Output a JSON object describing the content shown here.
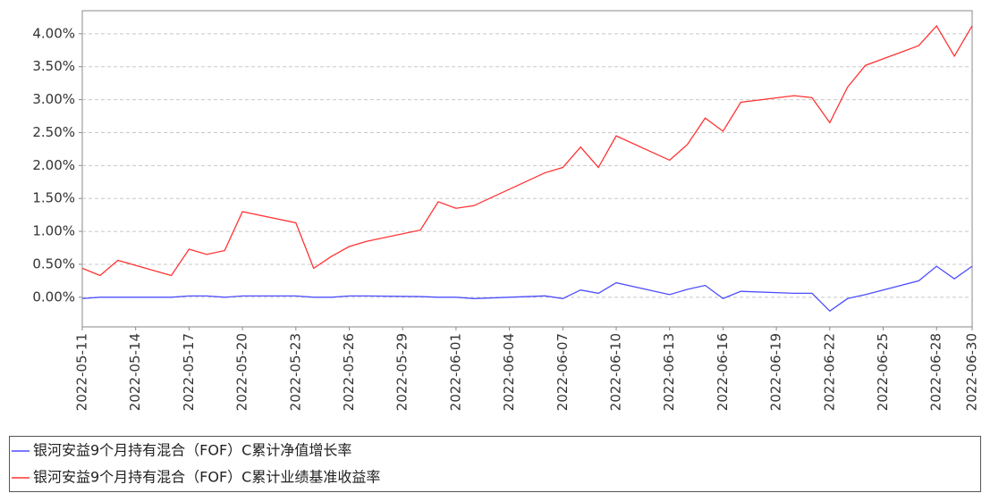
{
  "chart_data": {
    "type": "line",
    "x": [
      "2022-05-11",
      "2022-05-12",
      "2022-05-13",
      "2022-05-16",
      "2022-05-17",
      "2022-05-18",
      "2022-05-19",
      "2022-05-20",
      "2022-05-23",
      "2022-05-24",
      "2022-05-25",
      "2022-05-26",
      "2022-05-27",
      "2022-05-30",
      "2022-05-31",
      "2022-06-01",
      "2022-06-02",
      "2022-06-06",
      "2022-06-07",
      "2022-06-08",
      "2022-06-09",
      "2022-06-10",
      "2022-06-13",
      "2022-06-14",
      "2022-06-15",
      "2022-06-16",
      "2022-06-17",
      "2022-06-20",
      "2022-06-21",
      "2022-06-22",
      "2022-06-23",
      "2022-06-24",
      "2022-06-27",
      "2022-06-28",
      "2022-06-29",
      "2022-06-30"
    ],
    "series": [
      {
        "name": "银河安益9个月持有混合（FOF）C累计净值增长率",
        "color": "#4d4dff",
        "values": [
          -0.02,
          0.0,
          0.0,
          0.0,
          0.02,
          0.02,
          0.0,
          0.02,
          0.02,
          0.0,
          0.0,
          0.02,
          0.02,
          0.01,
          0.0,
          0.0,
          -0.02,
          0.02,
          -0.02,
          0.11,
          0.06,
          0.22,
          0.04,
          0.12,
          0.18,
          -0.02,
          0.09,
          0.06,
          0.06,
          -0.21,
          -0.02,
          0.04,
          0.25,
          0.47,
          0.28,
          0.47
        ]
      },
      {
        "name": "银河安益9个月持有混合（FOF）C累计业绩基准收益率",
        "color": "#ff3333",
        "values": [
          0.44,
          0.33,
          0.56,
          0.33,
          0.73,
          0.65,
          0.71,
          1.3,
          1.13,
          0.44,
          0.62,
          0.77,
          0.85,
          1.02,
          1.45,
          1.35,
          1.39,
          1.89,
          1.97,
          2.28,
          1.97,
          2.45,
          2.08,
          2.32,
          2.72,
          2.52,
          2.96,
          3.06,
          3.03,
          2.65,
          3.19,
          3.52,
          3.82,
          4.12,
          3.66,
          4.12
        ]
      }
    ],
    "xlim": [
      "2022-05-11",
      "2022-06-30"
    ],
    "xticks": [
      "2022-05-11",
      "2022-05-14",
      "2022-05-17",
      "2022-05-20",
      "2022-05-23",
      "2022-05-26",
      "2022-05-29",
      "2022-06-01",
      "2022-06-04",
      "2022-06-07",
      "2022-06-10",
      "2022-06-13",
      "2022-06-16",
      "2022-06-19",
      "2022-06-22",
      "2022-06-25",
      "2022-06-28",
      "2022-06-30"
    ],
    "ylim": [
      -0.45,
      4.35
    ],
    "yticks": [
      {
        "value": 0,
        "label": "0.00%"
      },
      {
        "value": 0.5,
        "label": "0.50%"
      },
      {
        "value": 1,
        "label": "1.00%"
      },
      {
        "value": 1.5,
        "label": "1.50%"
      },
      {
        "value": 2,
        "label": "2.00%"
      },
      {
        "value": 2.5,
        "label": "2.50%"
      },
      {
        "value": 3,
        "label": "3.00%"
      },
      {
        "value": 3.5,
        "label": "3.50%"
      },
      {
        "value": 4,
        "label": "4.00%"
      }
    ],
    "grid": true
  }
}
